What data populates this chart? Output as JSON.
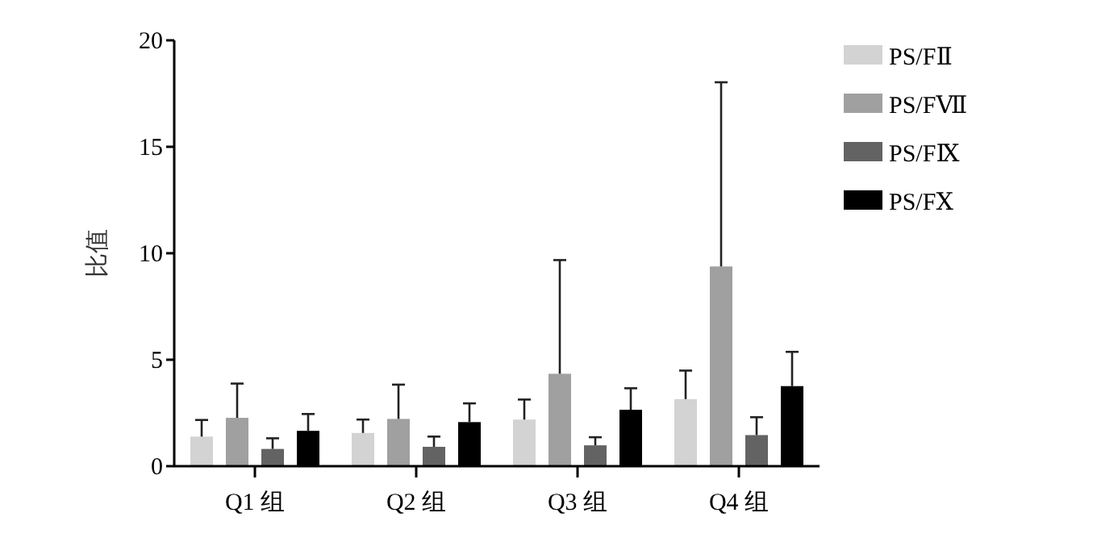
{
  "chart_data": {
    "type": "bar",
    "ylabel": "比值",
    "categories": [
      "Q1 组",
      "Q2 组",
      "Q3 组",
      "Q4 组"
    ],
    "ylim": [
      0,
      20
    ],
    "yticks": [
      0,
      5,
      10,
      15,
      20
    ],
    "legend": "top right",
    "grid": false,
    "series": [
      {
        "name": "PS/FⅡ",
        "color": "#d3d3d3",
        "values": [
          1.39,
          1.56,
          2.19,
          3.15
        ],
        "errors": [
          [
            1.39,
            2.17
          ],
          [
            1.56,
            2.19
          ],
          [
            2.19,
            3.13
          ],
          [
            3.15,
            4.49
          ]
        ]
      },
      {
        "name": "PS/FⅦ",
        "color": "#a0a0a0",
        "values": [
          2.27,
          2.22,
          4.34,
          9.38
        ],
        "errors": [
          [
            2.27,
            3.88
          ],
          [
            2.22,
            3.83
          ],
          [
            4.34,
            9.68
          ],
          [
            9.38,
            18.03
          ]
        ]
      },
      {
        "name": "PS/FⅨ",
        "color": "#636363",
        "values": [
          0.81,
          0.91,
          0.98,
          1.46
        ],
        "errors": [
          [
            0.81,
            1.31
          ],
          [
            0.91,
            1.39
          ],
          [
            0.98,
            1.36
          ],
          [
            1.46,
            2.3
          ]
        ]
      },
      {
        "name": "PS/FⅩ",
        "color": "#000000",
        "values": [
          1.66,
          2.07,
          2.65,
          3.76
        ],
        "errors": [
          [
            1.66,
            2.45
          ],
          [
            2.07,
            2.95
          ],
          [
            2.65,
            3.66
          ],
          [
            3.76,
            5.37
          ]
        ]
      }
    ]
  }
}
